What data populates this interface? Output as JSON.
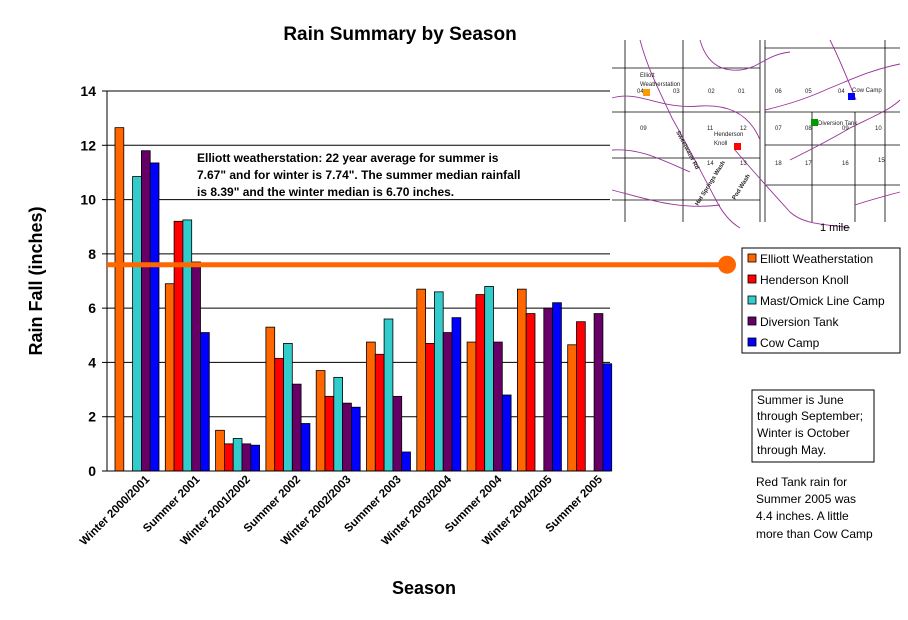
{
  "chart_data": {
    "type": "bar",
    "title": "Rain Summary by Season",
    "xlabel": "Season",
    "ylabel": "Rain Fall (inches)",
    "ylim": [
      0,
      14
    ],
    "yticks": [
      0,
      2,
      4,
      6,
      8,
      10,
      12,
      14
    ],
    "grid": "horizontal",
    "legend_position": "right",
    "categories": [
      "Winter 2000/2001",
      "Summer 2001",
      "Winter 2001/2002",
      "Summer 2002",
      "Winter 2002/2003",
      "Summer 2003",
      "Winter 2003/2004",
      "Summer 2004",
      "Winter 2004/2005",
      "Summer 2005"
    ],
    "series": [
      {
        "name": "Elliott Weatherstation",
        "color": "#FF6600",
        "values": [
          12.65,
          6.9,
          1.5,
          5.3,
          3.7,
          4.75,
          6.7,
          4.75,
          6.7,
          4.65
        ]
      },
      {
        "name": "Henderson Knoll",
        "color": "#FF0000",
        "values": [
          null,
          9.2,
          1.0,
          4.15,
          2.75,
          4.3,
          4.7,
          6.5,
          5.8,
          5.5
        ]
      },
      {
        "name": "Mast/Omick Line Camp",
        "color": "#33CCCC",
        "values": [
          10.85,
          9.25,
          1.2,
          4.7,
          3.45,
          5.6,
          6.6,
          6.8,
          null,
          null
        ]
      },
      {
        "name": "Diversion Tank",
        "color": "#660066",
        "values": [
          11.8,
          7.7,
          1.0,
          3.2,
          2.5,
          2.75,
          5.1,
          4.75,
          6.0,
          5.8
        ]
      },
      {
        "name": "Cow Camp",
        "color": "#0000FF",
        "values": [
          11.35,
          5.1,
          0.95,
          1.75,
          2.35,
          0.7,
          5.65,
          2.8,
          6.2,
          3.95
        ]
      }
    ],
    "reference_line": {
      "value": 7.6,
      "color": "#FF6600"
    },
    "annotation": [
      "Elliott weatherstation: 22 year average for summer is",
      "7.67\" and for winter is 7.74\". The summer median rainfall",
      "is 8.39\" and the winter median is 6.70 inches."
    ],
    "side_notes": {
      "seasons": [
        "Summer is June",
        "through September;",
        "Winter is October",
        "through May."
      ],
      "red_tank": [
        "Red Tank rain for",
        "Summer 2005 was",
        "4.4 inches.  A little",
        "more than Cow Camp"
      ]
    }
  },
  "map": {
    "labels": {
      "elliott": [
        "Elliott",
        "Weatherstation"
      ],
      "henderson": [
        "Henderson",
        "Knoll"
      ],
      "cow_camp": "Cow Camp",
      "diversion_tank": "Diversion Tank",
      "sweetwater": "Sweetwater Rd",
      "hot_springs": "Hot Springs Wash",
      "pod_wash": "Pod Wash",
      "scale": "1 mile"
    },
    "section_numbers_left": [
      "04",
      "03",
      "02",
      "01",
      "09",
      "10",
      "11",
      "12",
      "16",
      "15",
      "14",
      "13"
    ],
    "section_numbers_right": [
      "06",
      "05",
      "04",
      "03",
      "07",
      "08",
      "09",
      "10",
      "18",
      "17",
      "16",
      "15"
    ]
  }
}
